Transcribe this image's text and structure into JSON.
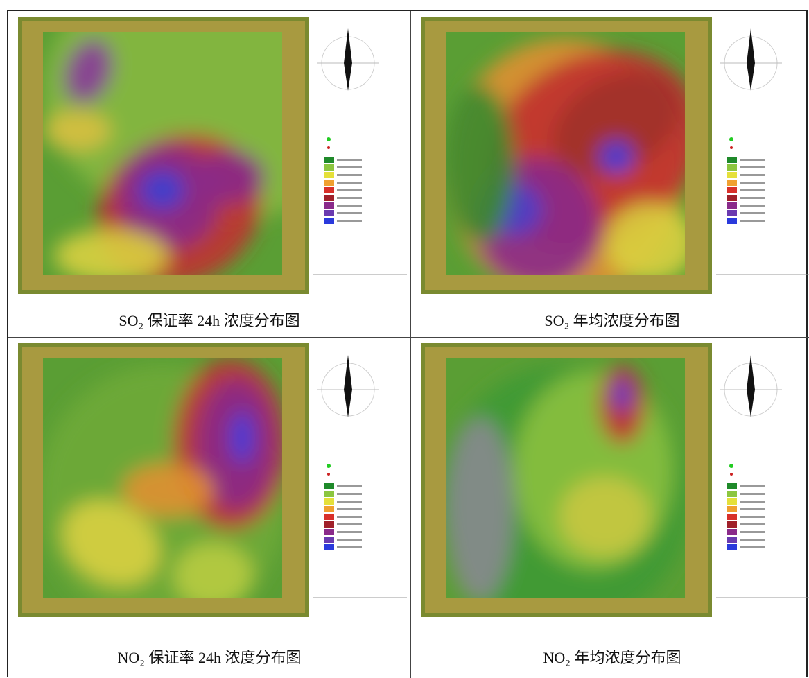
{
  "panels": [
    {
      "caption": "SO₂ 保证率 24h 浓度分布图"
    },
    {
      "caption": "SO₂ 年均浓度分布图"
    },
    {
      "caption": "NO₂ 保证率 24h 浓度分布图"
    },
    {
      "caption": "NO₂ 年均浓度分布图"
    }
  ]
}
